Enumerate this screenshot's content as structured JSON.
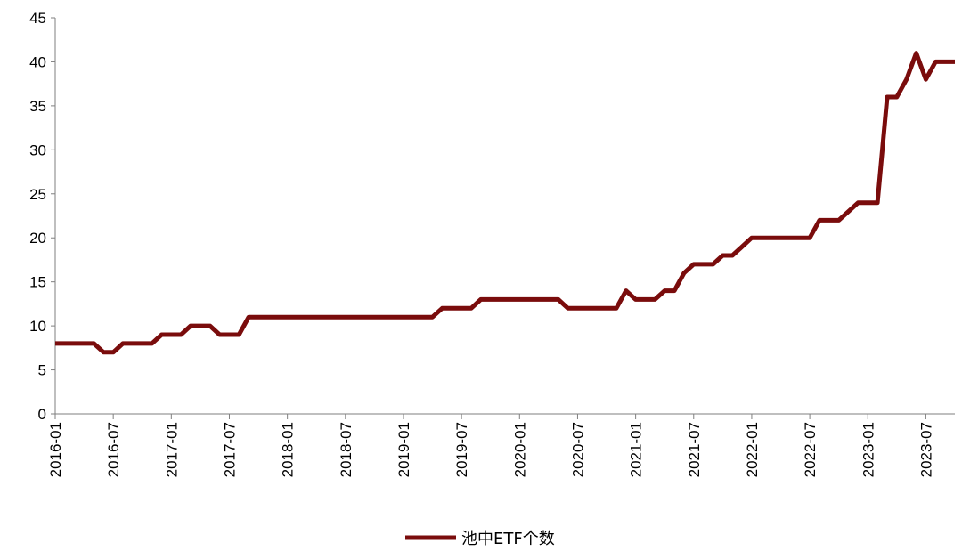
{
  "chart_data": {
    "type": "line",
    "title": "",
    "xlabel": "",
    "ylabel": "",
    "ylim": [
      0,
      45
    ],
    "yticks": [
      "0",
      "5",
      "10",
      "15",
      "20",
      "25",
      "30",
      "35",
      "40",
      "45"
    ],
    "xticks": [
      "2016-01",
      "2016-07",
      "2017-01",
      "2017-07",
      "2018-01",
      "2018-07",
      "2019-01",
      "2019-07",
      "2020-01",
      "2020-07",
      "2021-01",
      "2021-07",
      "2022-01",
      "2022-07",
      "2023-01",
      "2023-07"
    ],
    "grid": false,
    "legend_position": "bottom-center",
    "series": [
      {
        "name": "池中ETF个数",
        "color": "#7a0c0c",
        "x": [
          "2016-01",
          "2016-02",
          "2016-03",
          "2016-04",
          "2016-05",
          "2016-06",
          "2016-07",
          "2016-08",
          "2016-09",
          "2016-10",
          "2016-11",
          "2016-12",
          "2017-01",
          "2017-02",
          "2017-03",
          "2017-04",
          "2017-05",
          "2017-06",
          "2017-07",
          "2017-08",
          "2017-09",
          "2017-10",
          "2017-11",
          "2017-12",
          "2018-01",
          "2018-02",
          "2018-03",
          "2018-04",
          "2018-05",
          "2018-06",
          "2018-07",
          "2018-08",
          "2018-09",
          "2018-10",
          "2018-11",
          "2018-12",
          "2019-01",
          "2019-02",
          "2019-03",
          "2019-04",
          "2019-05",
          "2019-06",
          "2019-07",
          "2019-08",
          "2019-09",
          "2019-10",
          "2019-11",
          "2019-12",
          "2020-01",
          "2020-02",
          "2020-03",
          "2020-04",
          "2020-05",
          "2020-06",
          "2020-07",
          "2020-08",
          "2020-09",
          "2020-10",
          "2020-11",
          "2020-12",
          "2021-01",
          "2021-02",
          "2021-03",
          "2021-04",
          "2021-05",
          "2021-06",
          "2021-07",
          "2021-08",
          "2021-09",
          "2021-10",
          "2021-11",
          "2021-12",
          "2022-01",
          "2022-02",
          "2022-03",
          "2022-04",
          "2022-05",
          "2022-06",
          "2022-07",
          "2022-08",
          "2022-09",
          "2022-10",
          "2022-11",
          "2022-12",
          "2023-01",
          "2023-02",
          "2023-03",
          "2023-04",
          "2023-05",
          "2023-06",
          "2023-07",
          "2023-08",
          "2023-09",
          "2023-10"
        ],
        "values": [
          8,
          8,
          8,
          8,
          8,
          7,
          7,
          8,
          8,
          8,
          8,
          9,
          9,
          9,
          10,
          10,
          10,
          9,
          9,
          9,
          11,
          11,
          11,
          11,
          11,
          11,
          11,
          11,
          11,
          11,
          11,
          11,
          11,
          11,
          11,
          11,
          11,
          11,
          11,
          11,
          12,
          12,
          12,
          12,
          13,
          13,
          13,
          13,
          13,
          13,
          13,
          13,
          13,
          12,
          12,
          12,
          12,
          12,
          12,
          14,
          13,
          13,
          13,
          14,
          14,
          16,
          17,
          17,
          17,
          18,
          18,
          19,
          20,
          20,
          20,
          20,
          20,
          20,
          20,
          22,
          22,
          22,
          23,
          24,
          24,
          24,
          36,
          36,
          38,
          41,
          38,
          40,
          40,
          40
        ]
      }
    ]
  }
}
